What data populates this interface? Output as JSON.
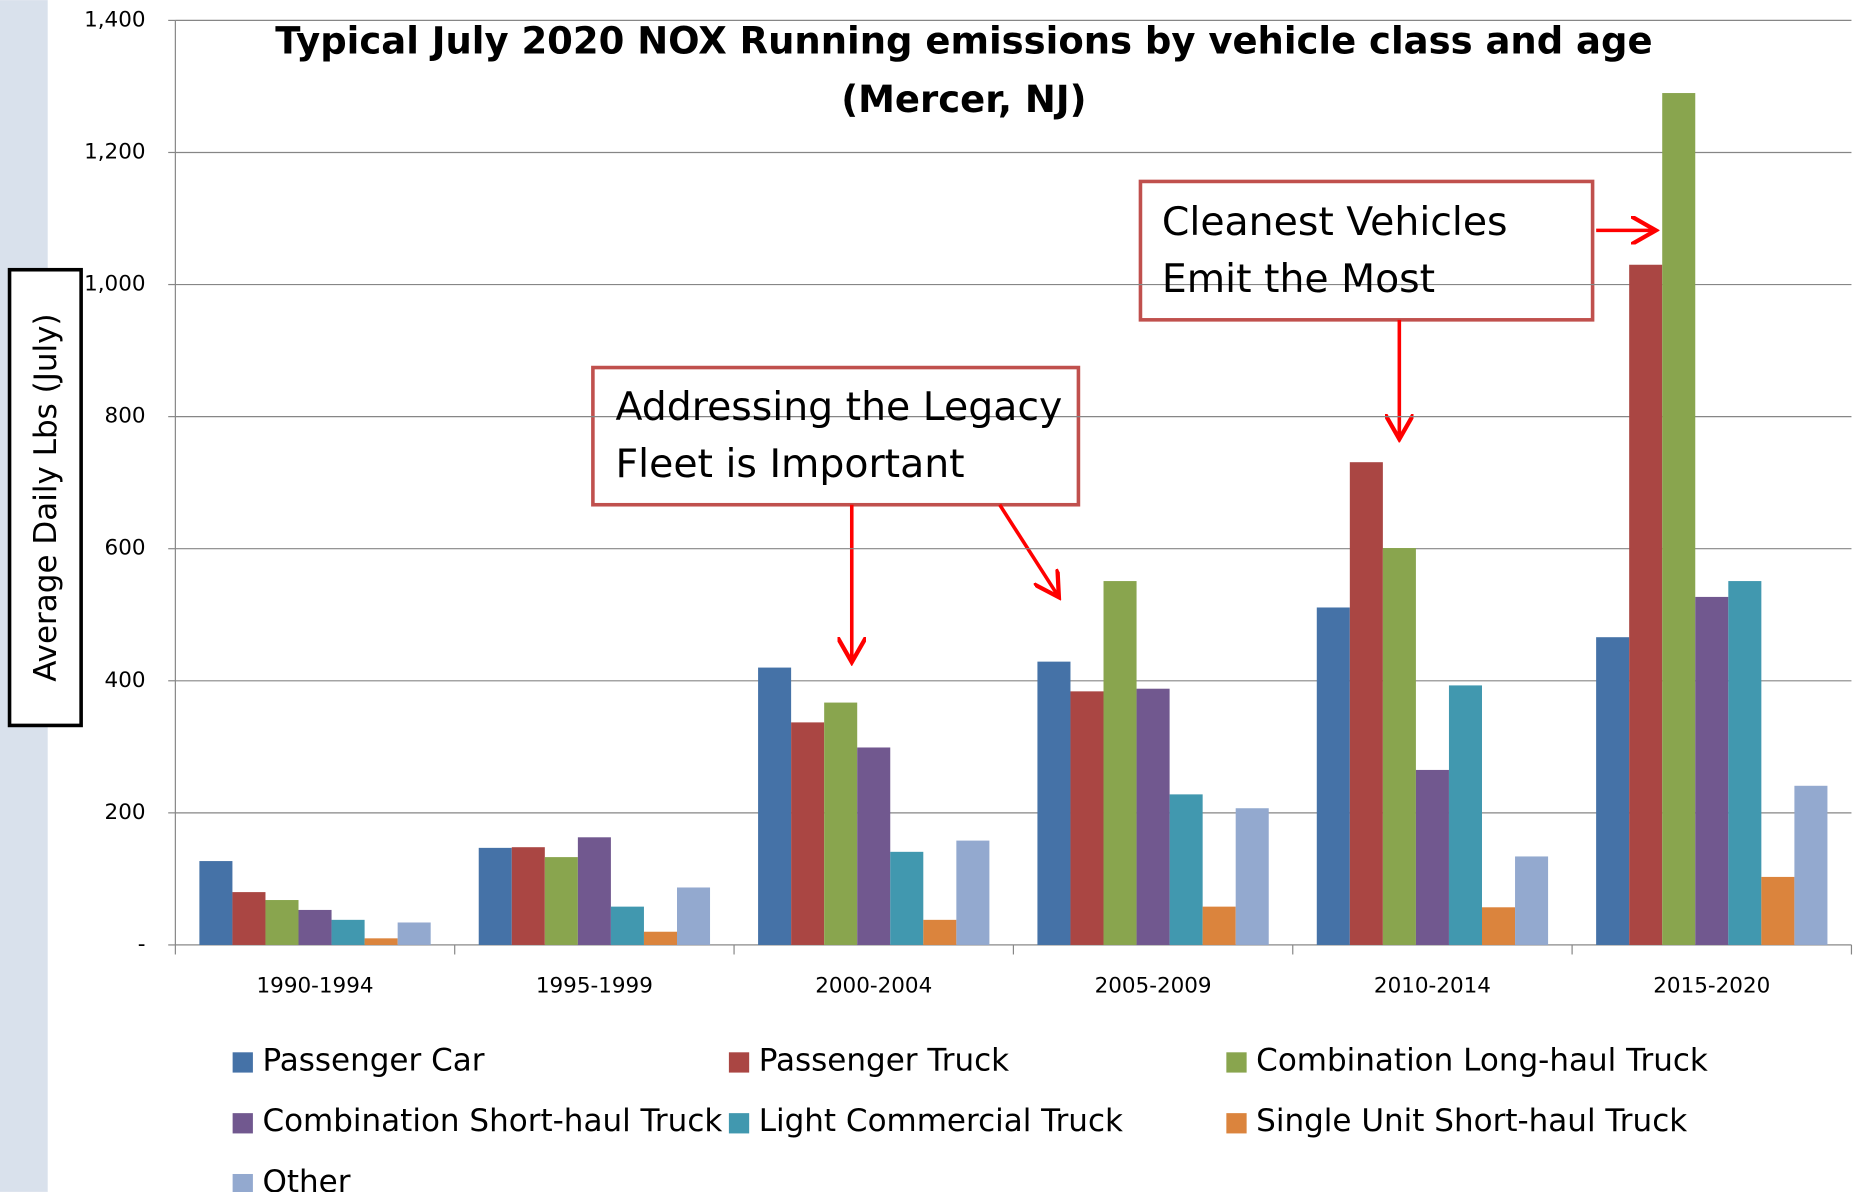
{
  "chart_data": {
    "type": "bar",
    "title": [
      "Typical July 2020 NOX Running emissions by vehicle class and age",
      "(Mercer, NJ)"
    ],
    "ylabel": "Average Daily Lbs  (July)",
    "categories": [
      "1990-1994",
      "1995-1999",
      "2000-2004",
      "2005-2009",
      "2010-2014",
      "2015-2020"
    ],
    "series": [
      {
        "name": "Passenger Car",
        "color": "#4572a7",
        "values": [
          127,
          147,
          420,
          429,
          511,
          466
        ]
      },
      {
        "name": "Passenger Truck",
        "color": "#aa4643",
        "values": [
          80,
          148,
          337,
          384,
          731,
          1030
        ]
      },
      {
        "name": "Combination Long-haul Truck",
        "color": "#89a54e",
        "values": [
          68,
          133,
          367,
          551,
          601,
          1290
        ]
      },
      {
        "name": "Combination Short-haul Truck",
        "color": "#71588f",
        "values": [
          53,
          163,
          299,
          388,
          265,
          527
        ]
      },
      {
        "name": "Light Commercial Truck",
        "color": "#4198af",
        "values": [
          38,
          58,
          141,
          228,
          393,
          551
        ]
      },
      {
        "name": "Single Unit Short-haul Truck",
        "color": "#db843d",
        "values": [
          10,
          20,
          38,
          58,
          57,
          103
        ]
      },
      {
        "name": "Other",
        "color": "#93a9cf",
        "values": [
          34,
          87,
          158,
          207,
          134,
          241
        ]
      }
    ],
    "ylim": [
      0,
      1400
    ],
    "yticks": [
      {
        "value": 0,
        "label": "-"
      },
      200,
      400,
      600,
      800,
      {
        "value": 1000,
        "label": "1,000"
      },
      {
        "value": 1200,
        "label": "1,200"
      },
      {
        "value": 1400,
        "label": "1,400"
      }
    ],
    "grid": true,
    "legend": "bottom",
    "annotations": [
      {
        "lines": [
          "Addressing the Legacy",
          "Fleet is Important"
        ]
      },
      {
        "lines": [
          "Cleanest Vehicles",
          "Emit the Most"
        ]
      }
    ]
  }
}
